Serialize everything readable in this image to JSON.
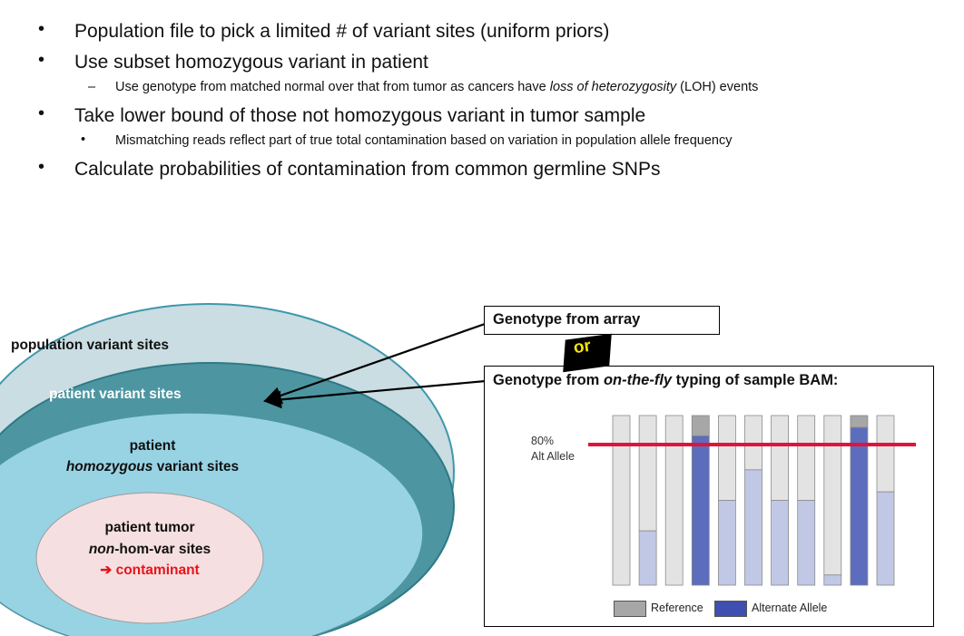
{
  "bullets": [
    {
      "text": "Population file to pick a limited # of variant sites (uniform priors)"
    },
    {
      "text": "Use subset homozygous variant in patient",
      "sub": {
        "marker": "–",
        "before": "Use genotype from matched normal over that from tumor as cancers have ",
        "italic": "loss of heterozygosity",
        "after": " (LOH) events"
      }
    },
    {
      "text": "Take lower bound of those not homozygous variant in tumor sample",
      "sub": {
        "marker": "•",
        "text": "Mismatching reads reflect part of true total contamination based on variation in population allele frequency"
      }
    },
    {
      "text": "Calculate probabilities of contamination from common germline SNPs"
    }
  ],
  "bullet_marker": "•",
  "venn": {
    "population": "population variant sites",
    "patient": "patient variant sites",
    "homozygous_line1": "patient",
    "homozygous_italic": "homozygous",
    "homozygous_rest": " variant sites",
    "tumor_line1": "patient tumor",
    "tumor_italic": "non",
    "tumor_rest": "-hom-var sites",
    "contaminant_arrow": "➔",
    "contaminant": "contaminant",
    "colors": {
      "outer": "#c9dde2",
      "patient": "#4d96a1",
      "homozygous": "#98d3e4",
      "tumor": "#f5dfe0",
      "contaminant": "#e8141a"
    }
  },
  "array_box": {
    "title": "Genotype from array"
  },
  "or_label": "or",
  "bam_box": {
    "title_before": "Genotype from ",
    "title_italic": "on-the-fly",
    "title_after": " typing of sample BAM:"
  },
  "threshold": {
    "line1": "80%",
    "line2": "Alt Allele",
    "fraction": 0.8
  },
  "chart_data": {
    "type": "bar",
    "stacked": true,
    "note": "each bar = allele fraction at one site; dark = above threshold",
    "alternate_fraction": [
      0.0,
      0.32,
      0.0,
      0.88,
      0.5,
      0.68,
      0.5,
      0.5,
      0.06,
      0.93,
      0.55
    ],
    "highlight": [
      false,
      false,
      false,
      true,
      false,
      false,
      false,
      false,
      false,
      true,
      false
    ],
    "threshold": 0.8,
    "colors": {
      "reference": "#e3e3e3",
      "reference_dark": "#a7a7a7",
      "alternate": "#c1c8e6",
      "alternate_dark": "#5d6dbd"
    },
    "legend": [
      {
        "name": "Reference",
        "color": "#a7a7a7"
      },
      {
        "name": "Alternate Allele",
        "color": "#3f4eb1"
      }
    ]
  }
}
